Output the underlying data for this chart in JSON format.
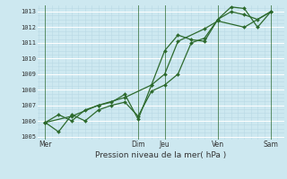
{
  "title": "Pression niveau de la mer( hPa )",
  "bg_color": "#cde8f0",
  "grid_color_major": "#ffffff",
  "grid_color_minor": "#b8d8e4",
  "line_color": "#2d6a2d",
  "marker_color": "#2d6a2d",
  "ylim": [
    1004.8,
    1013.4
  ],
  "yticks": [
    1005,
    1006,
    1007,
    1008,
    1009,
    1010,
    1011,
    1012,
    1013
  ],
  "x_day_labels": [
    "Mer",
    "Dim",
    "Jeu",
    "Ven",
    "Sam"
  ],
  "x_day_positions": [
    0.0,
    3.5,
    4.5,
    6.5,
    8.5
  ],
  "xlim": [
    -0.3,
    9.0
  ],
  "vline_positions": [
    0.0,
    3.5,
    4.5,
    6.5,
    8.5
  ],
  "series1_x": [
    0.0,
    0.5,
    1.0,
    1.5,
    2.0,
    2.5,
    3.0,
    3.5,
    4.0,
    4.5,
    5.0,
    5.5,
    6.0,
    6.5,
    7.0,
    7.5,
    8.0,
    8.5
  ],
  "series1_y": [
    1005.9,
    1005.3,
    1006.4,
    1006.0,
    1006.7,
    1007.0,
    1007.2,
    1006.3,
    1007.9,
    1008.3,
    1009.0,
    1011.0,
    1011.3,
    1012.5,
    1013.0,
    1012.8,
    1012.5,
    1013.0
  ],
  "series2_x": [
    0.0,
    0.5,
    1.0,
    1.5,
    2.0,
    2.5,
    3.0,
    3.5,
    4.0,
    4.5,
    5.0,
    5.5,
    6.0,
    6.5,
    7.0,
    7.5,
    8.0,
    8.5
  ],
  "series2_y": [
    1005.9,
    1006.4,
    1006.0,
    1006.7,
    1007.0,
    1007.2,
    1007.7,
    1006.1,
    1008.3,
    1010.5,
    1011.5,
    1011.2,
    1011.1,
    1012.5,
    1013.3,
    1013.2,
    1012.0,
    1013.0
  ],
  "series3_x": [
    0.0,
    1.0,
    2.0,
    3.0,
    4.0,
    4.5,
    5.0,
    6.0,
    6.5,
    7.5,
    8.5
  ],
  "series3_y": [
    1005.9,
    1006.3,
    1007.0,
    1007.5,
    1008.3,
    1009.0,
    1011.1,
    1011.9,
    1012.4,
    1012.0,
    1013.0
  ]
}
